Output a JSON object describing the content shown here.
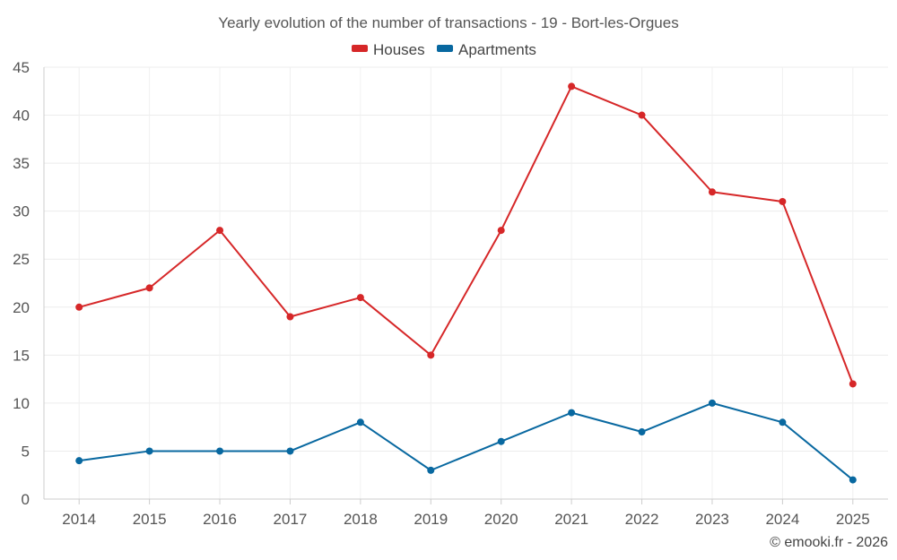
{
  "chart_data": {
    "type": "line",
    "title": "Yearly evolution of the number of transactions - 19 - Bort-les-Orgues",
    "categories": [
      "2014",
      "2015",
      "2016",
      "2017",
      "2018",
      "2019",
      "2020",
      "2021",
      "2022",
      "2023",
      "2024",
      "2025"
    ],
    "series": [
      {
        "name": "Houses",
        "color": "#d62728",
        "values": [
          20,
          22,
          28,
          19,
          21,
          15,
          28,
          43,
          40,
          32,
          31,
          12
        ]
      },
      {
        "name": "Apartments",
        "color": "#0868a0",
        "values": [
          4,
          5,
          5,
          5,
          8,
          3,
          6,
          9,
          7,
          10,
          8,
          2
        ]
      }
    ],
    "ylim": [
      0,
      45
    ],
    "yticks": [
      0,
      5,
      10,
      15,
      20,
      25,
      30,
      35,
      40,
      45
    ],
    "xlabel": "",
    "ylabel": "",
    "grid": true,
    "legend": "top-center"
  },
  "credit": "© emooki.fr - 2026"
}
